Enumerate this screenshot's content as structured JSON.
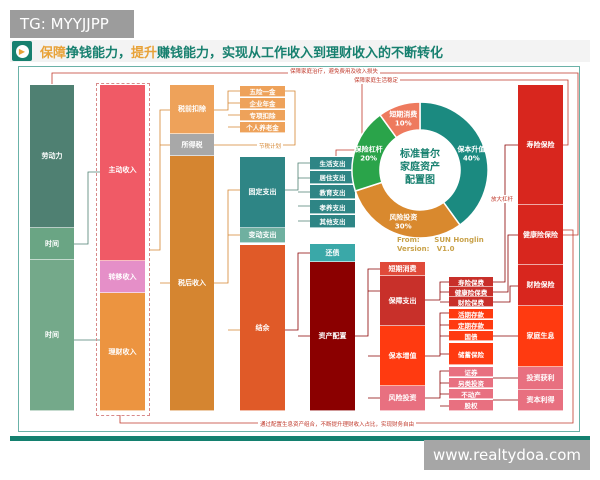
{
  "watermark_top": "TG: MYYJJPP",
  "watermark_bottom": "www.realtydoa.com",
  "title": {
    "part1": "保障",
    "part2": "挣钱能力，",
    "part3": "提升",
    "part4": "赚钱能力，实现从工作收入到理财收入的不断转化"
  },
  "notes": {
    "top1": "保障家庭治疗，避免费用及收入损失",
    "top2": "保障家庭生活稳定",
    "tax_plan": "节税计划",
    "leverage": "放大杠杆",
    "bottom": "通过配置生息资产组合，不断提升理财收入占比，实现财务自由"
  },
  "col_resources": [
    "劳动力",
    "时间",
    "时间"
  ],
  "col_income": [
    "主动收入",
    "转移收入",
    "理财收入"
  ],
  "col_tax": [
    "税前扣除",
    "所得税",
    "税后收入"
  ],
  "deductions": [
    "五险一金",
    "企业年金",
    "专项扣除",
    "个人养老金"
  ],
  "col_spend": [
    "固定支出",
    "变动支出",
    "结余"
  ],
  "fixed_items": [
    "生活支出",
    "居住支出",
    "教育支出",
    "孝养支出",
    "其他支出"
  ],
  "col_alloc": [
    "还债",
    "资产配置"
  ],
  "col_buckets": [
    "短期消费",
    "保障支出",
    "保本增值",
    "风险投资"
  ],
  "products": [
    "寿险保费",
    "健康险保费",
    "财险保费",
    "活期存款",
    "定期存款",
    "国债",
    "储蓄保险",
    "证券",
    "另类投资",
    "不动产",
    "股权"
  ],
  "outcomes": [
    "寿险保险",
    "健康险保险",
    "财险保险",
    "家庭生息",
    "投资获利",
    "资本利得"
  ],
  "donut": {
    "center": [
      "标准普尔",
      "家庭资产",
      "配置图"
    ],
    "segments": [
      {
        "label": "保本升值",
        "pct": "40%",
        "value": 40,
        "color": "#1b8a80"
      },
      {
        "label": "风险投资",
        "pct": "30%",
        "value": 30,
        "color": "#d9892e"
      },
      {
        "label": "保险杠杆",
        "pct": "20%",
        "value": 20,
        "color": "#2aa44a"
      },
      {
        "label": "短期消费",
        "pct": "10%",
        "value": 10,
        "color": "#ee7a5e"
      }
    ],
    "from": "From:      SUN Honglin",
    "version": "Version:   V1.0"
  }
}
